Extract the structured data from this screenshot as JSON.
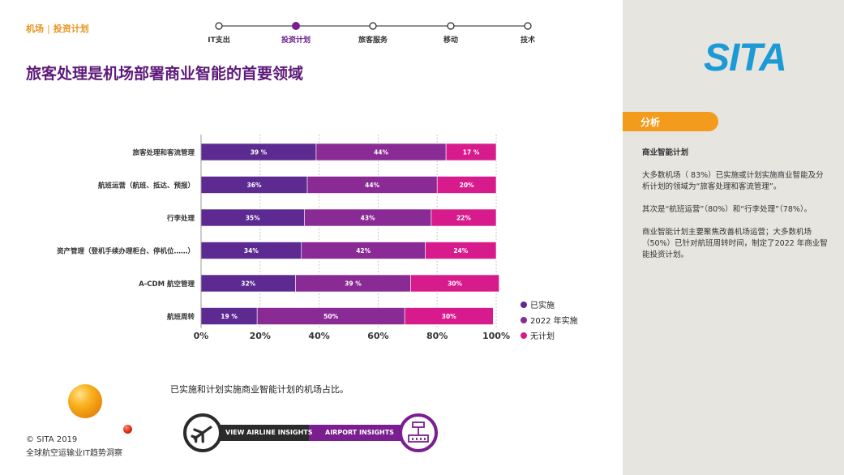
{
  "breadcrumb": {
    "section": "机场",
    "current": "投资计划"
  },
  "progress_steps": [
    {
      "label": "IT支出",
      "active": false
    },
    {
      "label": "投资计划",
      "active": true
    },
    {
      "label": "旅客服务",
      "active": false
    },
    {
      "label": "移动",
      "active": false
    },
    {
      "label": "技术",
      "active": false
    }
  ],
  "page_title": "旅客处理是机场部署商业智能的首要领域",
  "chart_data": {
    "type": "bar",
    "orientation": "horizontal",
    "stacked": true,
    "categories": [
      "旅客处理和客流管理",
      "航班运营（航班、抵达、预报）",
      "行李处理",
      "资产管理（登机手续办理柜台、停机位……）",
      "A-CDM 航空管理",
      "航班周转"
    ],
    "series": [
      {
        "name": "已实施",
        "color": "#5c2a91",
        "values": [
          39,
          36,
          35,
          34,
          32,
          19
        ],
        "labels": [
          "39 %",
          "36%",
          "35%",
          "34%",
          "32%",
          "19 %"
        ]
      },
      {
        "name": "2022 年实施",
        "color": "#8a2a94",
        "values": [
          44,
          44,
          43,
          42,
          39,
          50
        ],
        "labels": [
          "44%",
          "44%",
          "43%",
          "42%",
          "39 %",
          "50%"
        ]
      },
      {
        "name": "无计划",
        "color": "#d81b8c",
        "values": [
          17,
          20,
          22,
          24,
          30,
          30
        ],
        "labels": [
          "17 %",
          "20%",
          "22%",
          "24%",
          "30%",
          "30%"
        ]
      }
    ],
    "x_ticks": [
      "0%",
      "20%",
      "40%",
      "60%",
      "80%",
      "100%"
    ],
    "xlim": [
      0,
      100
    ],
    "grid": true,
    "legend_position": "right-bottom"
  },
  "caption": "已实施和计划实施商业智能计划的机场占比。",
  "footer": {
    "copyright": "© SITA 2019",
    "subtitle": "全球航空运输业IT趋势洞察"
  },
  "nav_switch": {
    "airline_label": "VIEW AIRLINE INSIGHTS",
    "airport_label": "AIRPORT INSIGHTS"
  },
  "sita_logo": "SITA",
  "analysis": {
    "tab_label": "分析",
    "heading": "商业智能计划",
    "paragraphs": [
      "大多数机场（ 83%）已实施或计划实施商业智能及分析计划的领域为“旅客处理和客流管理”。",
      "其次是“航班运营”（80%）和“行李处理”（78%）。",
      "商业智能计划主要聚焦改善机场运营；大多数机场（50%）已针对航班周转时间，制定了2022 年商业智能投资计划。"
    ]
  },
  "colors": {
    "purple": "#5e1a7a",
    "orange": "#f29b1d",
    "magenta": "#d81b8c",
    "panel": "#e6e5e0"
  }
}
